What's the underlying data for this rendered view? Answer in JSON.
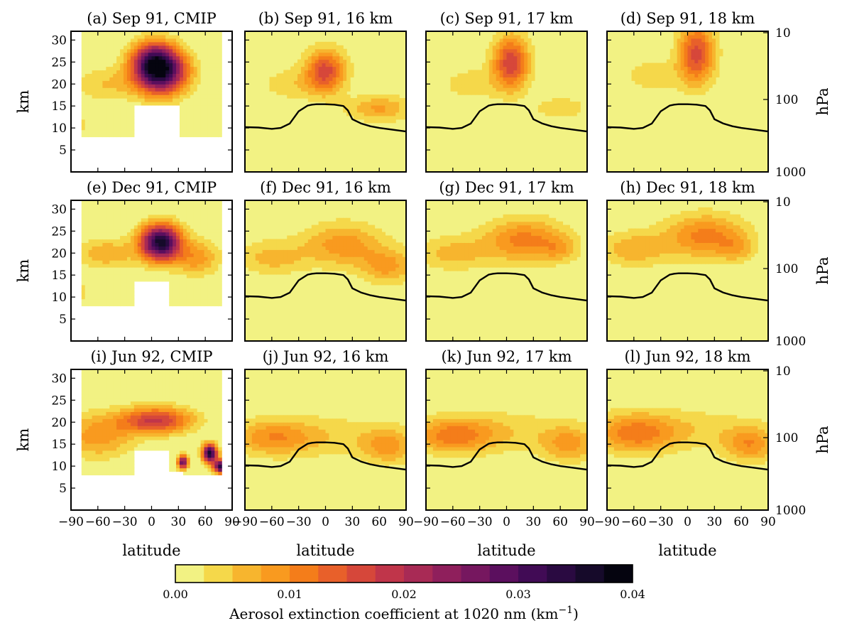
{
  "chart_data": {
    "type": "heatmap",
    "colorbar": {
      "label": "Aerosol extinction coefficient at 1020 nm (km",
      "label_exp": "−1",
      "label_close": ")",
      "range": [
        0,
        0.04
      ],
      "levels": 16,
      "ticks": [
        "0.00",
        "0.01",
        "0.02",
        "0.03",
        "0.04"
      ],
      "colors": [
        "#f2f283",
        "#f5d84a",
        "#f7b52e",
        "#f99a1f",
        "#f47d1a",
        "#e8602a",
        "#d6473a",
        "#c0354a",
        "#a82a55",
        "#8f1f5c",
        "#76175f",
        "#5b0f5e",
        "#410b55",
        "#2a0a41",
        "#160a2a",
        "#05040f"
      ]
    },
    "x": {
      "label": "latitude",
      "range": [
        -90,
        90
      ],
      "ticks": [
        "−90",
        "−60",
        "−30",
        "0",
        "30",
        "60",
        "90"
      ],
      "tick_values": [
        -90,
        -60,
        -30,
        0,
        30,
        60,
        90
      ]
    },
    "y_left": {
      "label": "km",
      "range": [
        0,
        32
      ],
      "ticks": [
        "5",
        "10",
        "15",
        "20",
        "25",
        "30"
      ],
      "tick_values": [
        5,
        10,
        15,
        20,
        25,
        30
      ]
    },
    "y_right": {
      "label": "hPa",
      "ticks": [
        "10",
        "100",
        "1000"
      ]
    },
    "panels": [
      {
        "title": "(a) Sep 91, CMIP",
        "kind": "cmip",
        "month": "sep",
        "blobs": [
          {
            "lat": 10,
            "z": 23,
            "rx": 28,
            "rz": 5,
            "amp": 0.036
          },
          {
            "lat": 0,
            "z": 26,
            "rx": 22,
            "rz": 4,
            "amp": 0.014
          },
          {
            "lat": -50,
            "z": 20,
            "rx": 35,
            "rz": 4,
            "amp": 0.005
          },
          {
            "lat": -80,
            "z": 11,
            "rx": 8,
            "rz": 2,
            "amp": 0.004
          }
        ]
      },
      {
        "title": "(b) Sep 91, 16 km",
        "kind": "model",
        "month": "sep",
        "blobs": [
          {
            "lat": 0,
            "z": 23,
            "rx": 22,
            "rz": 5,
            "amp": 0.016
          },
          {
            "lat": 60,
            "z": 14.5,
            "rx": 35,
            "rz": 3,
            "amp": 0.008
          },
          {
            "lat": -40,
            "z": 20,
            "rx": 35,
            "rz": 4,
            "amp": 0.004
          }
        ]
      },
      {
        "title": "(c) Sep 91, 17 km",
        "kind": "model",
        "month": "sep",
        "blobs": [
          {
            "lat": 5,
            "z": 25,
            "rx": 20,
            "rz": 6,
            "amp": 0.017
          },
          {
            "lat": 60,
            "z": 14.5,
            "rx": 35,
            "rz": 3,
            "amp": 0.004
          },
          {
            "lat": -40,
            "z": 20,
            "rx": 35,
            "rz": 4,
            "amp": 0.004
          }
        ]
      },
      {
        "title": "(d) Sep 91, 18 km",
        "kind": "model",
        "month": "sep",
        "blobs": [
          {
            "lat": 10,
            "z": 27,
            "rx": 20,
            "rz": 7,
            "amp": 0.016
          },
          {
            "lat": -40,
            "z": 22,
            "rx": 35,
            "rz": 4,
            "amp": 0.004
          }
        ]
      },
      {
        "title": "(e) Dec 91, CMIP",
        "kind": "cmip",
        "month": "dec",
        "blobs": [
          {
            "lat": 10,
            "z": 22.5,
            "rx": 22,
            "rz": 4,
            "amp": 0.036
          },
          {
            "lat": 50,
            "z": 19,
            "rx": 25,
            "rz": 4,
            "amp": 0.009
          },
          {
            "lat": -50,
            "z": 20,
            "rx": 35,
            "rz": 3.5,
            "amp": 0.007
          },
          {
            "lat": -80,
            "z": 11,
            "rx": 8,
            "rz": 2,
            "amp": 0.005
          }
        ]
      },
      {
        "title": "(f) Dec 91, 16 km",
        "kind": "model",
        "month": "dec",
        "blobs": [
          {
            "lat": 20,
            "z": 22,
            "rx": 45,
            "rz": 5,
            "amp": 0.009
          },
          {
            "lat": 70,
            "z": 17,
            "rx": 30,
            "rz": 4,
            "amp": 0.008
          },
          {
            "lat": -60,
            "z": 19,
            "rx": 40,
            "rz": 4,
            "amp": 0.006
          }
        ]
      },
      {
        "title": "(g) Dec 91, 17 km",
        "kind": "model",
        "month": "dec",
        "blobs": [
          {
            "lat": 20,
            "z": 23,
            "rx": 45,
            "rz": 5,
            "amp": 0.011
          },
          {
            "lat": 60,
            "z": 21,
            "rx": 20,
            "rz": 3,
            "amp": 0.005
          },
          {
            "lat": -60,
            "z": 20,
            "rx": 40,
            "rz": 4,
            "amp": 0.006
          }
        ]
      },
      {
        "title": "(h) Dec 91, 18 km",
        "kind": "model",
        "month": "dec",
        "blobs": [
          {
            "lat": 20,
            "z": 24,
            "rx": 45,
            "rz": 5,
            "amp": 0.011
          },
          {
            "lat": 55,
            "z": 21,
            "rx": 20,
            "rz": 3,
            "amp": 0.005
          },
          {
            "lat": -60,
            "z": 21,
            "rx": 40,
            "rz": 4,
            "amp": 0.007
          }
        ]
      },
      {
        "title": "(i) Jun 92, CMIP",
        "kind": "cmip",
        "month": "jun",
        "blobs": [
          {
            "lat": 5,
            "z": 20.5,
            "rx": 40,
            "rz": 3,
            "amp": 0.018
          },
          {
            "lat": 65,
            "z": 13,
            "rx": 8,
            "rz": 2,
            "amp": 0.036
          },
          {
            "lat": 80,
            "z": 10,
            "rx": 10,
            "rz": 1.5,
            "amp": 0.038
          },
          {
            "lat": 35,
            "z": 11,
            "rx": 6,
            "rz": 1.5,
            "amp": 0.028
          },
          {
            "lat": -60,
            "z": 17,
            "rx": 40,
            "rz": 5,
            "amp": 0.009
          }
        ]
      },
      {
        "title": "(j) Jun 92, 16 km",
        "kind": "model",
        "month": "jun",
        "blobs": [
          {
            "lat": -60,
            "z": 16.5,
            "rx": 45,
            "rz": 4,
            "amp": 0.008
          },
          {
            "lat": 70,
            "z": 14.5,
            "rx": 30,
            "rz": 4,
            "amp": 0.008
          },
          {
            "lat": 0,
            "z": 17,
            "rx": 80,
            "rz": 5,
            "amp": 0.004
          }
        ]
      },
      {
        "title": "(k) Jun 92, 17 km",
        "kind": "model",
        "month": "jun",
        "blobs": [
          {
            "lat": -60,
            "z": 17,
            "rx": 45,
            "rz": 4,
            "amp": 0.01
          },
          {
            "lat": 70,
            "z": 15,
            "rx": 30,
            "rz": 4,
            "amp": 0.008
          },
          {
            "lat": 0,
            "z": 18,
            "rx": 80,
            "rz": 5,
            "amp": 0.004
          }
        ]
      },
      {
        "title": "(l) Jun 92, 18 km",
        "kind": "model",
        "month": "jun",
        "blobs": [
          {
            "lat": -60,
            "z": 17.5,
            "rx": 45,
            "rz": 4.5,
            "amp": 0.01
          },
          {
            "lat": 70,
            "z": 15,
            "rx": 30,
            "rz": 4,
            "amp": 0.009
          },
          {
            "lat": 0,
            "z": 18.5,
            "rx": 80,
            "rz": 5,
            "amp": 0.004
          }
        ]
      }
    ],
    "tropopause": {
      "lat": [
        -90,
        -75,
        -60,
        -50,
        -40,
        -30,
        -20,
        -15,
        -10,
        0,
        10,
        20,
        25,
        30,
        40,
        50,
        60,
        75,
        90
      ],
      "z": [
        10.2,
        10.1,
        9.8,
        10.0,
        11.0,
        13.8,
        15.1,
        15.3,
        15.4,
        15.4,
        15.3,
        15.0,
        14.0,
        12.0,
        11.0,
        10.4,
        10.0,
        9.6,
        9.2
      ]
    }
  }
}
